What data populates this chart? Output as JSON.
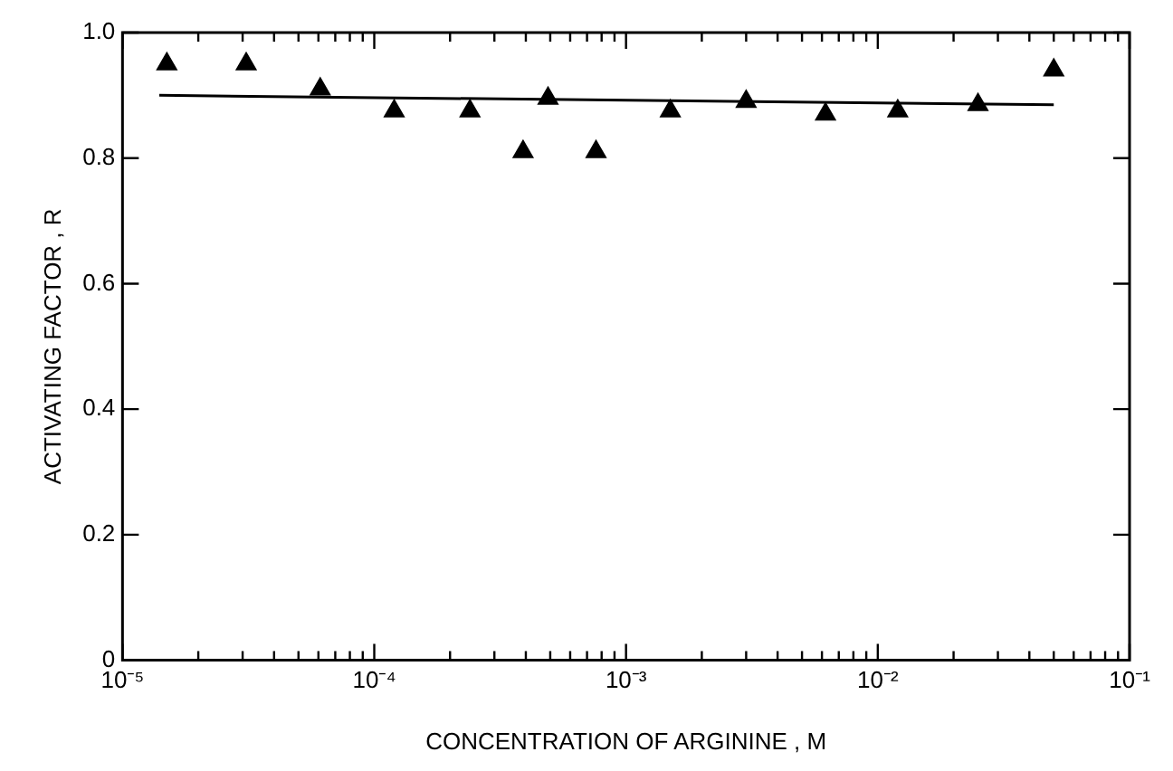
{
  "chart_data": {
    "type": "scatter",
    "xlabel": "CONCENTRATION OF ARGININE , M",
    "ylabel": "ACTIVATING FACTOR , R",
    "log": "x",
    "grid": false,
    "legend": false,
    "marker": "triangle",
    "xlim": [
      1e-05,
      0.1
    ],
    "ylim": [
      0,
      1
    ],
    "xticks": [
      {
        "value": 1e-05,
        "label": "10⁻⁵"
      },
      {
        "value": 2e-05,
        "label": null
      },
      {
        "value": 3e-05,
        "label": null
      },
      {
        "value": 4e-05,
        "label": null
      },
      {
        "value": 5e-05,
        "label": null
      },
      {
        "value": 6e-05,
        "label": null
      },
      {
        "value": 7e-05,
        "label": null
      },
      {
        "value": 8e-05,
        "label": null
      },
      {
        "value": 9e-05,
        "label": null
      },
      {
        "value": 0.0001,
        "label": "10⁻⁴"
      },
      {
        "value": 0.0002,
        "label": null
      },
      {
        "value": 0.0003,
        "label": null
      },
      {
        "value": 0.0004,
        "label": null
      },
      {
        "value": 0.0005,
        "label": null
      },
      {
        "value": 0.0006,
        "label": null
      },
      {
        "value": 0.0007,
        "label": null
      },
      {
        "value": 0.0008,
        "label": null
      },
      {
        "value": 0.0009,
        "label": null
      },
      {
        "value": 0.001,
        "label": "10⁻³"
      },
      {
        "value": 0.002,
        "label": null
      },
      {
        "value": 0.003,
        "label": null
      },
      {
        "value": 0.004,
        "label": null
      },
      {
        "value": 0.005,
        "label": null
      },
      {
        "value": 0.006,
        "label": null
      },
      {
        "value": 0.007,
        "label": null
      },
      {
        "value": 0.008,
        "label": null
      },
      {
        "value": 0.009,
        "label": null
      },
      {
        "value": 0.01,
        "label": "10⁻²"
      },
      {
        "value": 0.02,
        "label": null
      },
      {
        "value": 0.03,
        "label": null
      },
      {
        "value": 0.04,
        "label": null
      },
      {
        "value": 0.05,
        "label": null
      },
      {
        "value": 0.06,
        "label": null
      },
      {
        "value": 0.07,
        "label": null
      },
      {
        "value": 0.08,
        "label": null
      },
      {
        "value": 0.09,
        "label": null
      },
      {
        "value": 0.1,
        "label": "10⁻¹"
      }
    ],
    "yticks": [
      0,
      0.2,
      0.4,
      0.6,
      0.8,
      {
        "value": 1,
        "label": "1.0"
      }
    ],
    "series": [
      {
        "color": "#000000",
        "x": [
          1.5e-05,
          3.1e-05,
          6.1e-05,
          0.00012,
          0.00024,
          0.00039,
          0.00049,
          0.00076,
          0.0015,
          0.003,
          0.0062,
          0.012,
          0.025,
          0.05
        ],
        "values": [
          0.95,
          0.95,
          0.91,
          0.875,
          0.875,
          0.81,
          0.895,
          0.81,
          0.875,
          0.89,
          0.87,
          0.875,
          0.885,
          0.94
        ]
      },
      {
        "type": "line",
        "marker": "none",
        "line_style": "solid",
        "color": "#000000",
        "x": [
          1.4e-05,
          0.05
        ],
        "values": [
          0.9,
          0.885
        ]
      }
    ]
  }
}
